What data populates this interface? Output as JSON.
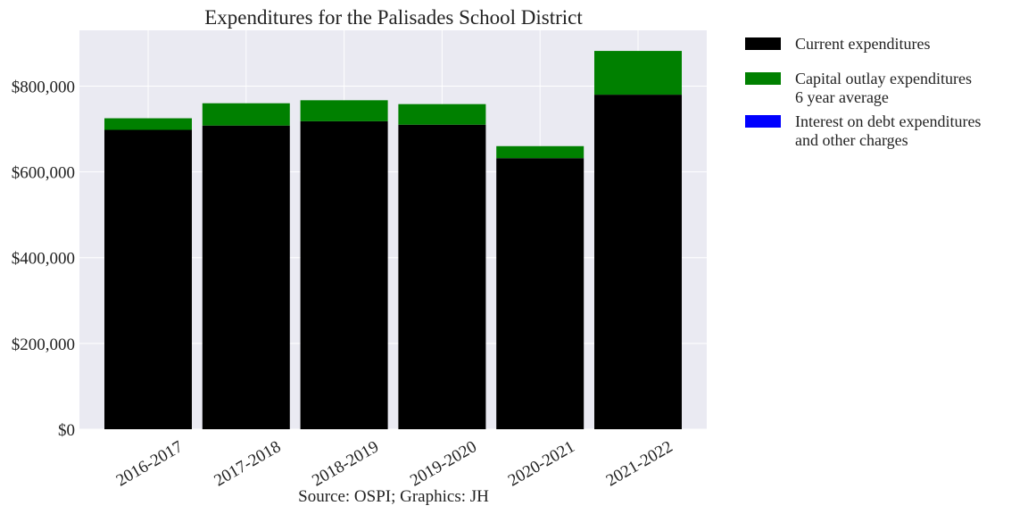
{
  "chart_data": {
    "type": "bar",
    "stacked": true,
    "title": "Expenditures for the Palisades School District",
    "caption": "Source: OSPI; Graphics: JH",
    "xlabel": "",
    "ylabel": "",
    "categories": [
      "2016-2017",
      "2017-2018",
      "2018-2019",
      "2019-2020",
      "2020-2021",
      "2021-2022"
    ],
    "series": [
      {
        "name": "Current expenditures",
        "color": "#000000",
        "values": [
          698000,
          708000,
          718000,
          710000,
          632000,
          780000
        ]
      },
      {
        "name": "Capital outlay expenditures\n6 year average",
        "color": "#008000",
        "values": [
          27000,
          52000,
          49000,
          48000,
          28000,
          102000
        ]
      },
      {
        "name": "Interest on debt expenditures\nand other charges",
        "color": "#0000ff",
        "values": [
          0,
          0,
          0,
          0,
          0,
          0
        ]
      }
    ],
    "ylim": [
      0,
      930000
    ],
    "yticks": [
      0,
      200000,
      400000,
      600000,
      800000
    ],
    "ytick_labels": [
      "$0",
      "$200,000",
      "$400,000",
      "$600,000",
      "$800,000"
    ],
    "grid": true,
    "background": "#eaeaf2",
    "legend_position": "outside-right-top"
  }
}
